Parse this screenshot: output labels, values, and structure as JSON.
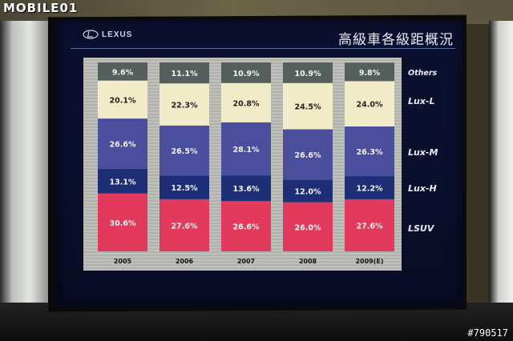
{
  "watermark": "MOBILE01",
  "photo_id": "#790517",
  "slide": {
    "brand": "LEXUS",
    "title": "高級車各級距概況"
  },
  "chart_data": {
    "type": "bar",
    "stacked": true,
    "title": "高級車各級距概況",
    "categories": [
      "2005",
      "2006",
      "2007",
      "2008",
      "2009(E)"
    ],
    "ylim": [
      0,
      100
    ],
    "value_suffix": "%",
    "series": [
      {
        "name": "LSUV",
        "color": "#e23a5c",
        "values": [
          30.6,
          27.6,
          26.6,
          26.0,
          27.6
        ]
      },
      {
        "name": "Lux-H",
        "color": "#1e2f78",
        "values": [
          13.1,
          12.5,
          13.6,
          12.0,
          12.2
        ]
      },
      {
        "name": "Lux-M",
        "color": "#4b4e9c",
        "values": [
          26.6,
          26.5,
          28.1,
          26.6,
          26.3
        ]
      },
      {
        "name": "Lux-L",
        "color": "#f2ebc8",
        "values": [
          20.1,
          22.3,
          20.8,
          24.5,
          24.0
        ]
      },
      {
        "name": "Others",
        "color": "#55605c",
        "values": [
          9.6,
          11.1,
          10.9,
          10.9,
          9.8
        ]
      }
    ],
    "legend_position": "right",
    "grid": false
  }
}
